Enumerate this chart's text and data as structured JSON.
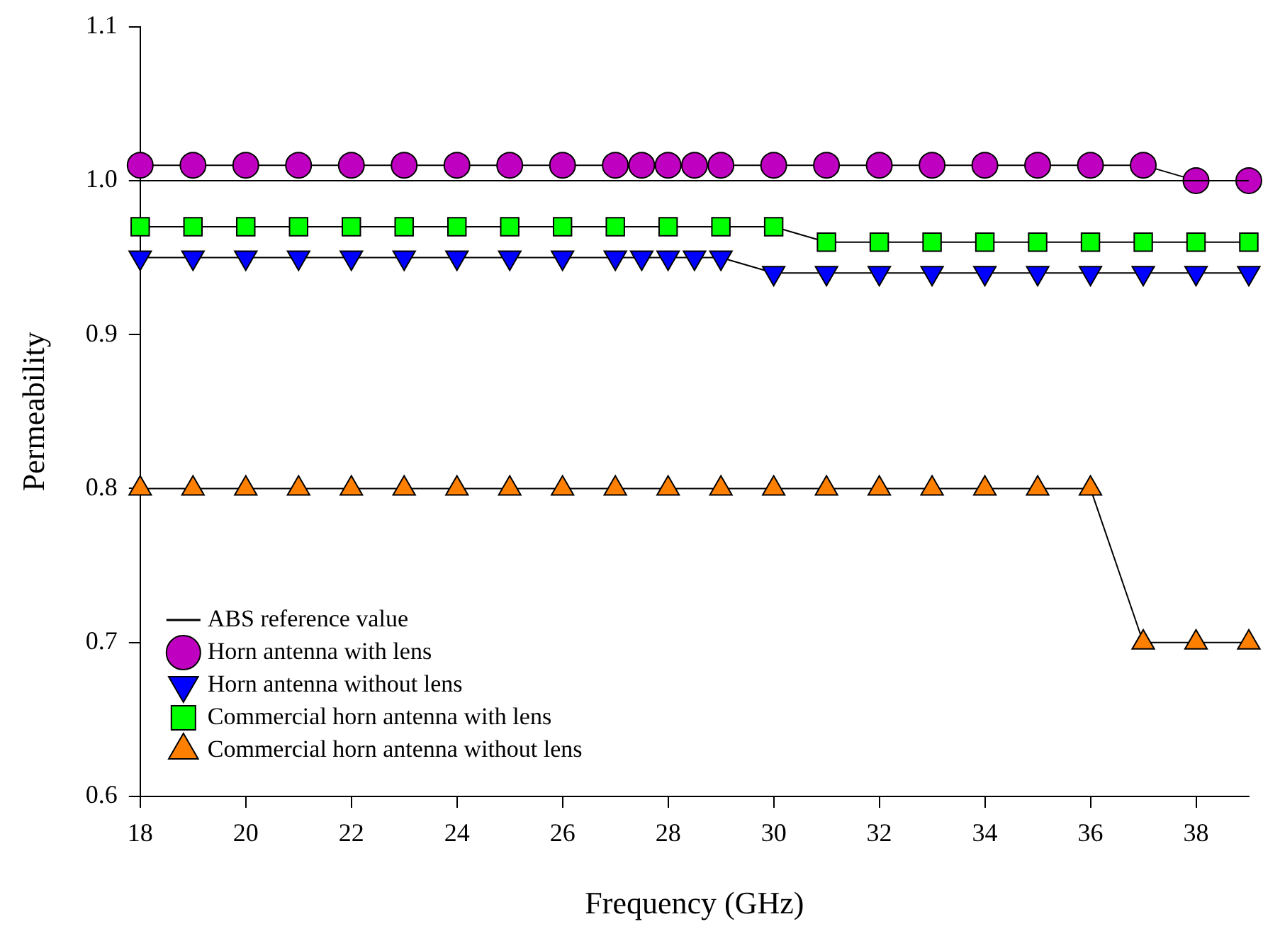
{
  "chart_data": {
    "type": "line",
    "xlabel": "Frequency (GHz)",
    "ylabel": "Permeability",
    "xlim": [
      18,
      39
    ],
    "xticks": [
      18,
      20,
      22,
      24,
      26,
      28,
      30,
      32,
      34,
      36,
      38
    ],
    "ylim": [
      0.6,
      1.1
    ],
    "yticks": [
      0.6,
      0.7,
      0.8,
      0.9,
      {
        "value": 1,
        "label": "1.0"
      },
      1.1
    ],
    "grid": false,
    "legend": "bottom left",
    "series": [
      {
        "name": "ABS reference value",
        "color": "#000000",
        "x": [
          18,
          39
        ],
        "values": [
          1.0,
          1.0
        ]
      },
      {
        "name": "Horn antenna with lens",
        "color": "#c000c0",
        "marker": "circle",
        "x": [
          18,
          19,
          20,
          21,
          22,
          23,
          24,
          25,
          26,
          27,
          27.5,
          28,
          28.5,
          29,
          30,
          31,
          32,
          33,
          34,
          35,
          36,
          37,
          38,
          39
        ],
        "values": [
          1.01,
          1.01,
          1.01,
          1.01,
          1.01,
          1.01,
          1.01,
          1.01,
          1.01,
          1.01,
          1.01,
          1.01,
          1.01,
          1.01,
          1.01,
          1.01,
          1.01,
          1.01,
          1.01,
          1.01,
          1.01,
          1.01,
          1.0,
          1.0
        ]
      },
      {
        "name": "Horn antenna without lens",
        "color": "#0000ff",
        "marker": "triangle-down",
        "x": [
          18,
          19,
          20,
          21,
          22,
          23,
          24,
          25,
          26,
          27,
          27.5,
          28,
          28.5,
          29,
          30,
          31,
          32,
          33,
          34,
          35,
          36,
          37,
          38,
          39
        ],
        "values": [
          0.95,
          0.95,
          0.95,
          0.95,
          0.95,
          0.95,
          0.95,
          0.95,
          0.95,
          0.95,
          0.95,
          0.95,
          0.95,
          0.95,
          0.94,
          0.94,
          0.94,
          0.94,
          0.94,
          0.94,
          0.94,
          0.94,
          0.94,
          0.94
        ]
      },
      {
        "name": "Commercial horn antenna with lens",
        "color": "#00ff00",
        "marker": "square",
        "x": [
          18,
          19,
          20,
          21,
          22,
          23,
          24,
          25,
          26,
          27,
          28,
          29,
          30,
          31,
          32,
          33,
          34,
          35,
          36,
          37,
          38,
          39
        ],
        "values": [
          0.97,
          0.97,
          0.97,
          0.97,
          0.97,
          0.97,
          0.97,
          0.97,
          0.97,
          0.97,
          0.97,
          0.97,
          0.97,
          0.96,
          0.96,
          0.96,
          0.96,
          0.96,
          0.96,
          0.96,
          0.96,
          0.96
        ]
      },
      {
        "name": "Commercial horn antenna without lens",
        "color": "#ff8000",
        "marker": "triangle",
        "x": [
          18,
          19,
          20,
          21,
          22,
          23,
          24,
          25,
          26,
          27,
          28,
          29,
          30,
          31,
          32,
          33,
          34,
          35,
          36,
          37,
          38,
          39
        ],
        "values": [
          0.8,
          0.8,
          0.8,
          0.8,
          0.8,
          0.8,
          0.8,
          0.8,
          0.8,
          0.8,
          0.8,
          0.8,
          0.8,
          0.8,
          0.8,
          0.8,
          0.8,
          0.8,
          0.8,
          0.7,
          0.7,
          0.7
        ]
      }
    ]
  }
}
